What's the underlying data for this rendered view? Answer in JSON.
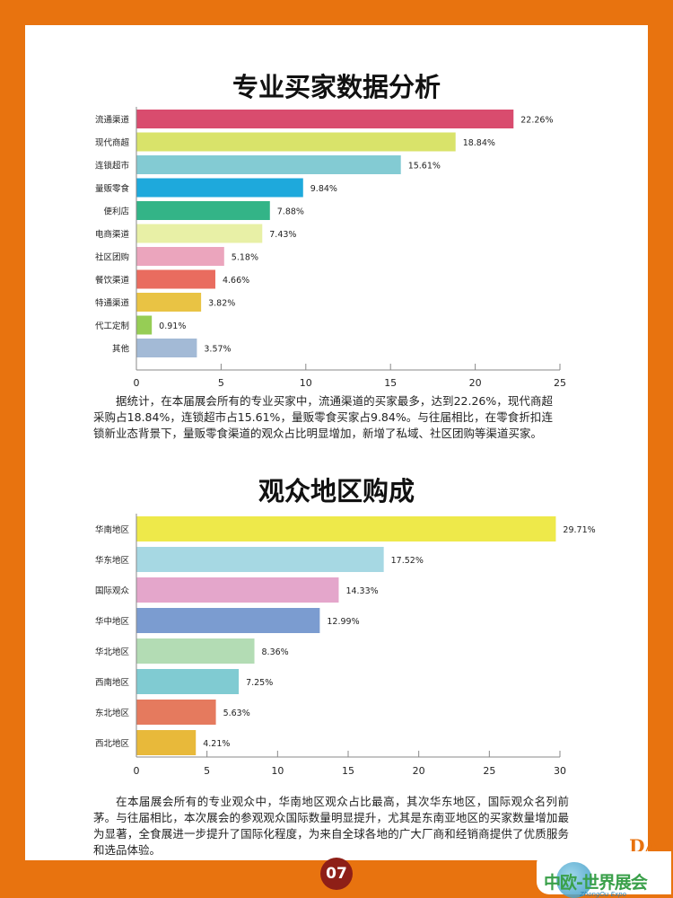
{
  "chart_data": [
    {
      "type": "bar",
      "orientation": "horizontal",
      "title": "专业买家数据分析",
      "categories": [
        "流通渠道",
        "现代商超",
        "连锁超市",
        "量贩零食",
        "便利店",
        "电商渠道",
        "社区团购",
        "餐饮渠道",
        "特通渠道",
        "代工定制",
        "其他"
      ],
      "values": [
        22.26,
        18.84,
        15.61,
        9.84,
        7.88,
        7.43,
        5.18,
        4.66,
        3.82,
        0.91,
        3.57
      ],
      "labels": [
        "22.26%",
        "18.84%",
        "15.61%",
        "9.84%",
        "7.88%",
        "7.43%",
        "5.18%",
        "4.66%",
        "3.82%",
        "0.91%",
        "3.57%"
      ],
      "colors": [
        "#d94c6e",
        "#d9e36a",
        "#83cbd3",
        "#1ea9dc",
        "#33b487",
        "#e8f0a6",
        "#eba5bd",
        "#e96c5f",
        "#e9c344",
        "#96cd55",
        "#a3bad6"
      ],
      "xlim": [
        0,
        25
      ],
      "xticks": [
        "0",
        "5",
        "10",
        "15",
        "20",
        "25"
      ],
      "grid": false
    },
    {
      "type": "bar",
      "orientation": "horizontal",
      "title": "观众地区购成",
      "categories": [
        "华南地区",
        "华东地区",
        "国际观众",
        "华中地区",
        "华北地区",
        "西南地区",
        "东北地区",
        "西北地区"
      ],
      "values": [
        29.71,
        17.52,
        14.33,
        12.99,
        8.36,
        7.25,
        5.63,
        4.21
      ],
      "labels": [
        "29.71%",
        "17.52%",
        "14.33%",
        "12.99%",
        "8.36%",
        "7.25%",
        "5.63%",
        "4.21%"
      ],
      "colors": [
        "#eee94a",
        "#a6d8e3",
        "#e4a6cb",
        "#7b9cd0",
        "#b3dcb4",
        "#80cbd2",
        "#e57a5e",
        "#e8b93a"
      ],
      "xlim": [
        0,
        30
      ],
      "xticks": [
        "0",
        "5",
        "10",
        "15",
        "20",
        "25",
        "30"
      ],
      "grid": false
    }
  ],
  "paragraphs": [
    "据统计，在本届展会所有的专业买家中，流通渠道的买家最多，达到22.26%，现代商超采购占18.84%，连锁超市占15.61%，量贩零食买家占9.84%。与往届相比，在零食折扣连锁新业态背景下，量贩零食渠道的观众占比明显增加，新增了私域、社区团购等渠道买家。",
    "在本届展会所有的专业观众中，华南地区观众占比最高，其次华东地区，国际观众名列前茅。与往届相比，本次展会的参观观众国际数量明显提升，尤其是东南亚地区的买家数量增加最为显著，全食展进一步提升了国际化程度，为来自全球各地的广大厂商和经销商提供了优质服务和选品体验。"
  ],
  "page_number": "07",
  "logo": {
    "mark": "DA",
    "name": "中欧-世界展会",
    "sub": "ZhongOu Expo"
  },
  "colors": {
    "frame": "#e8730f",
    "page_badge": "#8e1f17"
  }
}
